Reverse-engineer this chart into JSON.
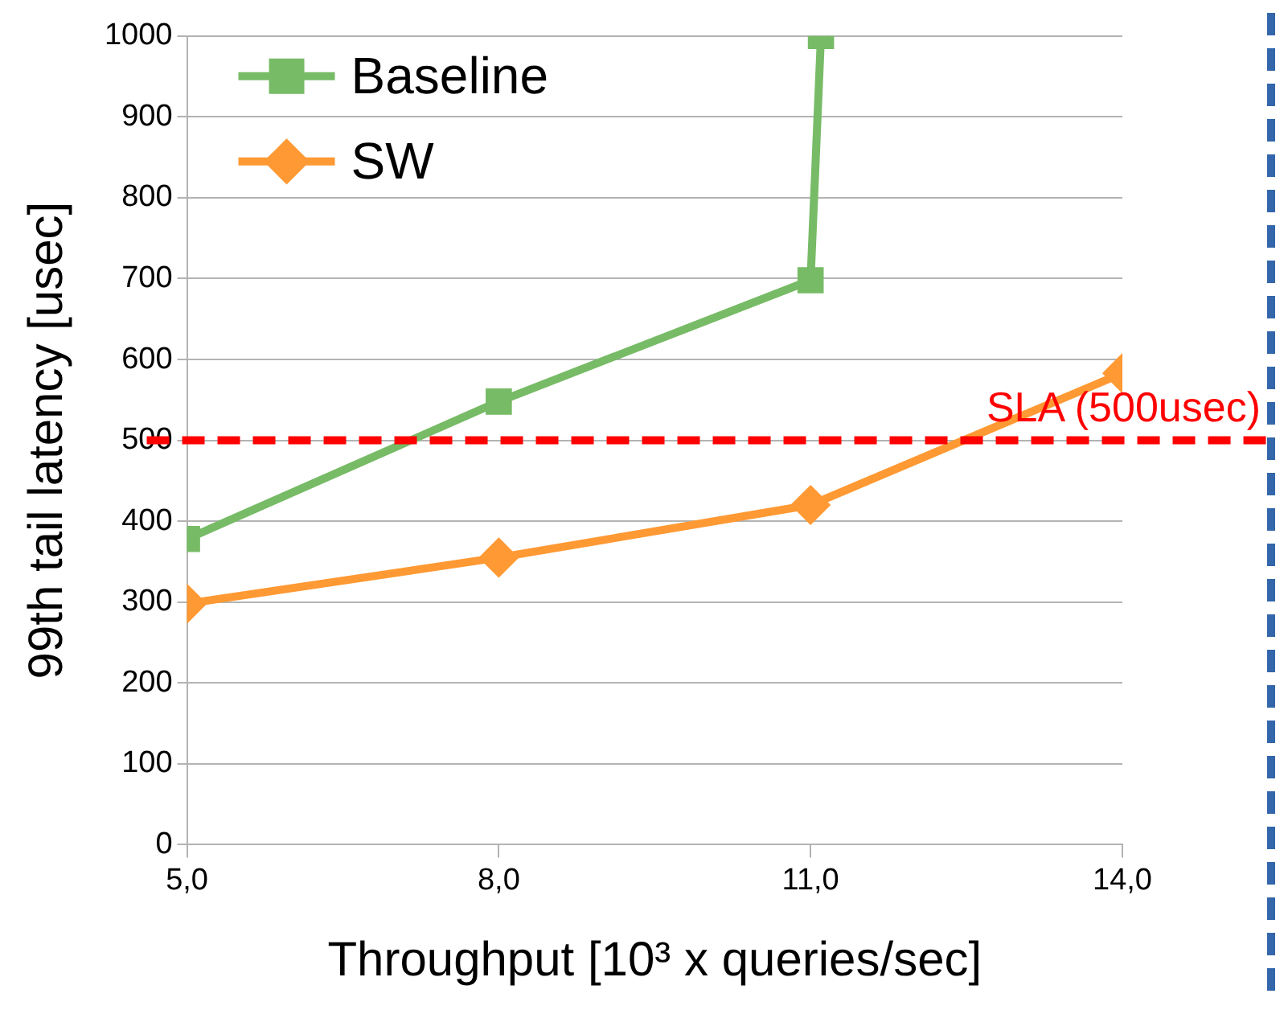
{
  "chart_data": {
    "type": "line",
    "xlabel": "Throughput [10³ x queries/sec]",
    "ylabel": "99th tail latency [usec]",
    "xlim": [
      5,
      14
    ],
    "xticks": [
      {
        "value": 5,
        "label": "5,0"
      },
      {
        "value": 8,
        "label": "8,0"
      },
      {
        "value": 11,
        "label": "11,0"
      },
      {
        "value": 14,
        "label": "14,0"
      }
    ],
    "ylim": [
      0,
      1000
    ],
    "yticks": [
      0,
      100,
      200,
      300,
      400,
      500,
      600,
      700,
      800,
      900,
      1000
    ],
    "series": [
      {
        "name": "Baseline",
        "color": "#77bb66",
        "marker": "square",
        "x": [
          5,
          8,
          11,
          11.1
        ],
        "values": [
          378,
          548,
          698,
          1000
        ]
      },
      {
        "name": "SW",
        "color": "#ff9933",
        "marker": "diamond",
        "x": [
          5,
          8,
          11,
          14
        ],
        "values": [
          298,
          355,
          420,
          583
        ]
      }
    ],
    "ref_lines": [
      {
        "axis": "y",
        "value": 500,
        "label": "SLA (500usec)",
        "color": "#ff0000",
        "line_style": "dashed"
      }
    ],
    "grid": "y",
    "legend": "top left"
  }
}
